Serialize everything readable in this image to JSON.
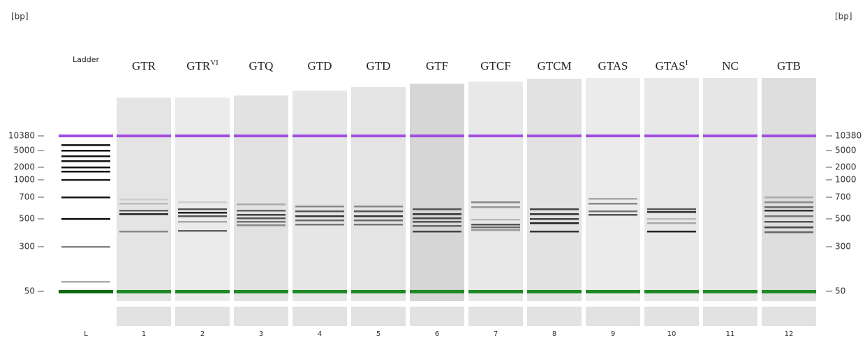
{
  "units": {
    "left": "[bp]",
    "right": "[bp]"
  },
  "size_scale": [
    10380,
    5000,
    2000,
    1000,
    700,
    500,
    300,
    50
  ],
  "lanes": [
    {
      "name": "Ladder",
      "number": "L"
    },
    {
      "name": "GTR",
      "number": "1"
    },
    {
      "name": "GTR",
      "sup": "VI",
      "number": "2"
    },
    {
      "name": "GTQ",
      "number": "3"
    },
    {
      "name": "GTD",
      "number": "4"
    },
    {
      "name": "GTD",
      "number": "5"
    },
    {
      "name": "GTF",
      "number": "6"
    },
    {
      "name": "GTCF",
      "number": "7"
    },
    {
      "name": "GTCM",
      "number": "8"
    },
    {
      "name": "GTAS",
      "number": "9"
    },
    {
      "name": "GTAS",
      "sup": "I",
      "number": "10"
    },
    {
      "name": "NC",
      "number": "11"
    },
    {
      "name": "GTB",
      "number": "12"
    }
  ]
}
